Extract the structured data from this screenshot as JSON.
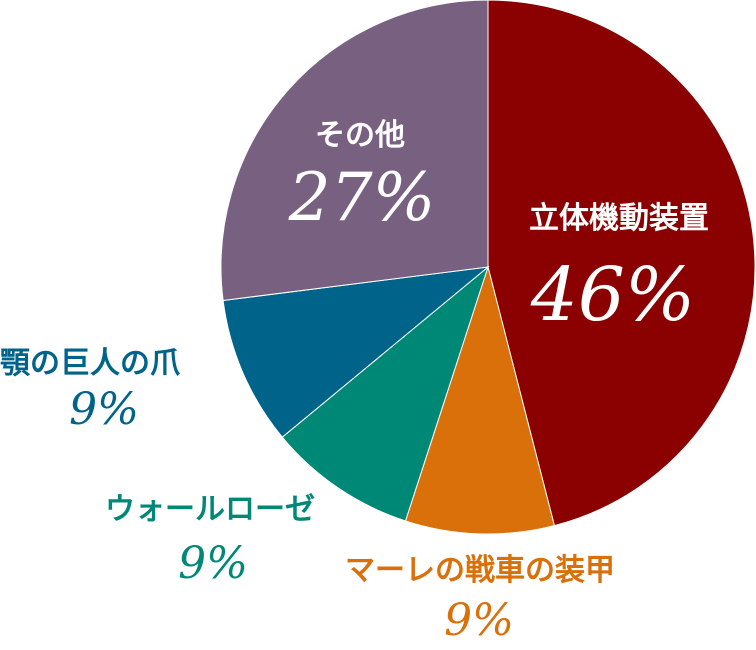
{
  "chart_data": {
    "type": "pie",
    "title": "",
    "slices": [
      {
        "label": "立体機動装置",
        "value": 46,
        "value_label": "46%",
        "color": "#8b0000",
        "label_color": "#ffffff"
      },
      {
        "label": "マーレの戦車の装甲",
        "value": 9,
        "value_label": "9%",
        "color": "#d9700a",
        "label_color": "#d9700a"
      },
      {
        "label": "ウォールローゼ",
        "value": 9,
        "value_label": "9%",
        "color": "#008877",
        "label_color": "#008877"
      },
      {
        "label": "顎の巨人の爪",
        "value": 9,
        "value_label": "9%",
        "color": "#00638a",
        "label_color": "#00638a"
      },
      {
        "label": "その他",
        "value": 27,
        "value_label": "27%",
        "color": "#786080",
        "label_color": "#ffffff"
      }
    ],
    "start_angle": "top",
    "direction": "clockwise",
    "legend": "none"
  }
}
